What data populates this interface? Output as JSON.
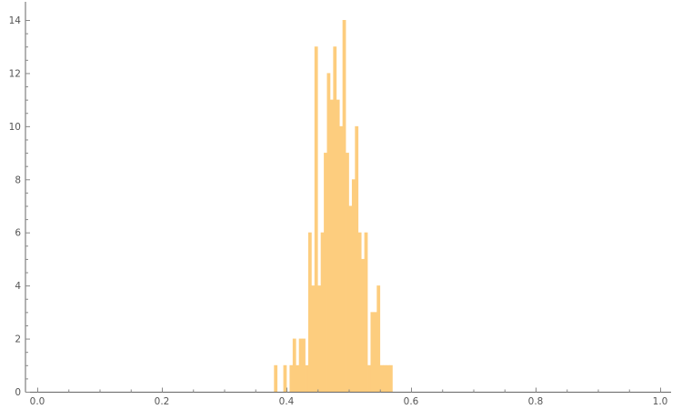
{
  "chart_data": {
    "type": "bar",
    "title": "",
    "xlabel": "",
    "ylabel": "",
    "xlim": [
      0.0,
      1.0
    ],
    "ylim": [
      0,
      14
    ],
    "grid": false,
    "bar_color": "#fdcd7e",
    "bin_width": 0.005,
    "bins": [
      {
        "x": 0.38,
        "count": 1
      },
      {
        "x": 0.395,
        "count": 1
      },
      {
        "x": 0.405,
        "count": 1
      },
      {
        "x": 0.41,
        "count": 2
      },
      {
        "x": 0.415,
        "count": 1
      },
      {
        "x": 0.42,
        "count": 2
      },
      {
        "x": 0.425,
        "count": 2
      },
      {
        "x": 0.43,
        "count": 1
      },
      {
        "x": 0.435,
        "count": 6
      },
      {
        "x": 0.44,
        "count": 4
      },
      {
        "x": 0.445,
        "count": 13
      },
      {
        "x": 0.45,
        "count": 4
      },
      {
        "x": 0.455,
        "count": 6
      },
      {
        "x": 0.46,
        "count": 9
      },
      {
        "x": 0.465,
        "count": 12
      },
      {
        "x": 0.47,
        "count": 11
      },
      {
        "x": 0.475,
        "count": 13
      },
      {
        "x": 0.48,
        "count": 11
      },
      {
        "x": 0.485,
        "count": 10
      },
      {
        "x": 0.49,
        "count": 14
      },
      {
        "x": 0.495,
        "count": 9
      },
      {
        "x": 0.5,
        "count": 7
      },
      {
        "x": 0.505,
        "count": 8
      },
      {
        "x": 0.51,
        "count": 10
      },
      {
        "x": 0.515,
        "count": 6
      },
      {
        "x": 0.52,
        "count": 5
      },
      {
        "x": 0.525,
        "count": 6
      },
      {
        "x": 0.53,
        "count": 1
      },
      {
        "x": 0.535,
        "count": 3
      },
      {
        "x": 0.54,
        "count": 3
      },
      {
        "x": 0.545,
        "count": 4
      },
      {
        "x": 0.55,
        "count": 1
      },
      {
        "x": 0.555,
        "count": 1
      },
      {
        "x": 0.56,
        "count": 1
      },
      {
        "x": 0.565,
        "count": 1
      }
    ],
    "x_ticks": [
      "0.0",
      "0.2",
      "0.4",
      "0.6",
      "0.8",
      "1.0"
    ],
    "x_tick_values": [
      0.0,
      0.2,
      0.4,
      0.6,
      0.8,
      1.0
    ],
    "y_ticks": [
      "0",
      "2",
      "4",
      "6",
      "8",
      "10",
      "12",
      "14"
    ],
    "y_tick_values": [
      0,
      2,
      4,
      6,
      8,
      10,
      12,
      14
    ]
  }
}
